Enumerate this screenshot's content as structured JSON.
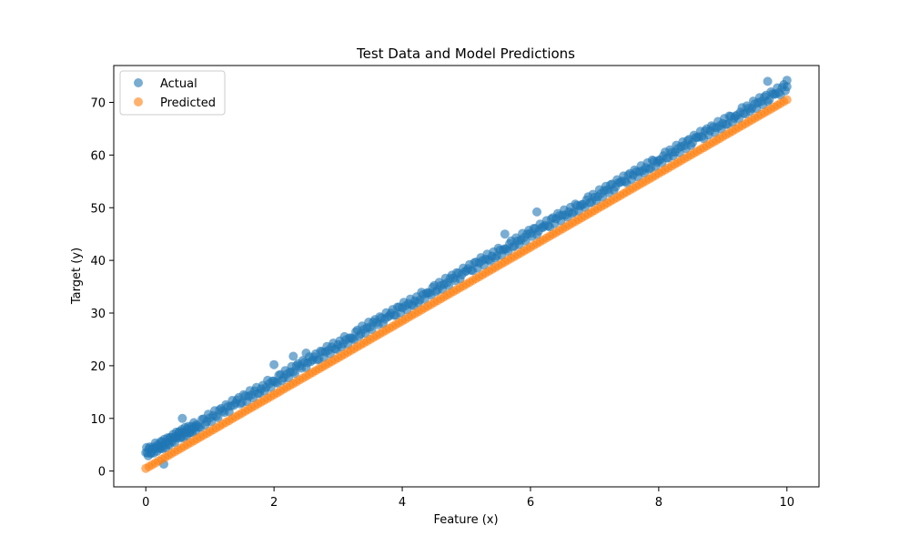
{
  "chart_data": {
    "type": "scatter",
    "title": "Test Data and Model Predictions",
    "xlabel": "Feature (x)",
    "ylabel": "Target (y)",
    "xlim": [
      -0.5,
      10.5
    ],
    "ylim": [
      -3.0,
      77.0
    ],
    "xticks": [
      0,
      2,
      4,
      6,
      8,
      10
    ],
    "yticks": [
      0,
      10,
      20,
      30,
      40,
      50,
      60,
      70
    ],
    "grid": false,
    "legend_position": "top-left",
    "series": [
      {
        "name": "Actual",
        "color": "#1f77b4",
        "alpha": 0.6,
        "relation": "approximately y = 7x + 3 with noise (±2)",
        "x": [
          0.0,
          0.1,
          0.2,
          0.3,
          0.4,
          0.5,
          0.6,
          0.7,
          0.8,
          1.0,
          1.2,
          1.4,
          1.6,
          1.8,
          2.0,
          2.2,
          2.4,
          2.6,
          2.8,
          3.0,
          3.2,
          3.4,
          3.6,
          3.8,
          4.0,
          4.2,
          4.4,
          4.6,
          4.8,
          5.0,
          5.2,
          5.4,
          5.6,
          5.8,
          6.0,
          6.2,
          6.4,
          6.6,
          6.8,
          7.0,
          7.2,
          7.4,
          7.6,
          7.8,
          8.0,
          8.2,
          8.4,
          8.6,
          8.8,
          9.0,
          9.2,
          9.4,
          9.6,
          9.8,
          10.0
        ],
        "y": [
          3.5,
          4.1,
          4.8,
          5.2,
          5.9,
          6.7,
          7.3,
          8.0,
          8.6,
          10.1,
          11.4,
          12.9,
          14.2,
          15.6,
          17.1,
          18.4,
          19.9,
          21.1,
          22.6,
          24.0,
          25.3,
          26.9,
          28.2,
          29.5,
          31.0,
          32.3,
          33.9,
          35.2,
          36.6,
          38.0,
          39.5,
          40.8,
          42.2,
          43.7,
          45.1,
          46.3,
          47.9,
          49.2,
          50.6,
          52.0,
          53.4,
          54.8,
          56.2,
          57.6,
          59.0,
          60.5,
          61.8,
          63.3,
          64.6,
          66.0,
          67.4,
          68.9,
          70.2,
          71.5,
          73.0
        ]
      },
      {
        "name": "Predicted",
        "color": "#ff7f0e",
        "alpha": 0.6,
        "relation": "y = 7x + 0.5",
        "x": [
          0.0,
          0.5,
          1.0,
          1.5,
          2.0,
          2.5,
          3.0,
          3.5,
          4.0,
          4.5,
          5.0,
          5.5,
          6.0,
          6.5,
          7.0,
          7.5,
          8.0,
          8.5,
          9.0,
          9.5,
          10.0
        ],
        "y": [
          0.5,
          4.0,
          7.5,
          11.0,
          14.5,
          18.0,
          21.5,
          25.0,
          28.5,
          32.0,
          35.5,
          39.0,
          42.5,
          46.0,
          49.5,
          53.0,
          56.5,
          60.0,
          63.5,
          67.0,
          70.5
        ]
      }
    ],
    "outliers_actual": [
      {
        "x": 0.28,
        "y": 1.3
      },
      {
        "x": 0.57,
        "y": 10.0
      },
      {
        "x": 2.0,
        "y": 20.2
      },
      {
        "x": 2.3,
        "y": 21.8
      },
      {
        "x": 2.5,
        "y": 22.4
      },
      {
        "x": 5.6,
        "y": 45.0
      },
      {
        "x": 6.1,
        "y": 49.2
      },
      {
        "x": 9.7,
        "y": 74.0
      },
      {
        "x": 10.0,
        "y": 74.2
      }
    ]
  }
}
